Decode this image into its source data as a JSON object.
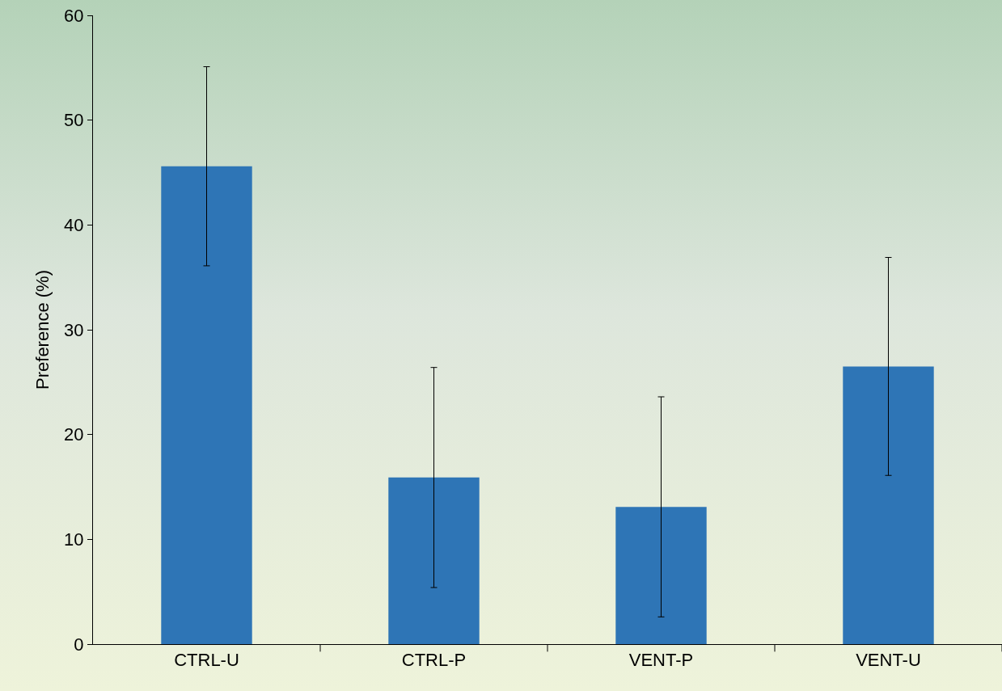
{
  "chart_data": {
    "type": "bar",
    "ylabel": "Preference (%)",
    "categories": [
      "CTRL-U",
      "CTRL-P",
      "VENT-P",
      "VENT-U"
    ],
    "values": [
      45.6,
      15.9,
      13.1,
      26.5
    ],
    "errors": [
      9.5,
      10.5,
      10.5,
      10.4
    ],
    "color": "#2e75b6",
    "ylim": [
      0,
      60
    ],
    "yticks": [
      0,
      10,
      20,
      30,
      40,
      50,
      60
    ]
  }
}
